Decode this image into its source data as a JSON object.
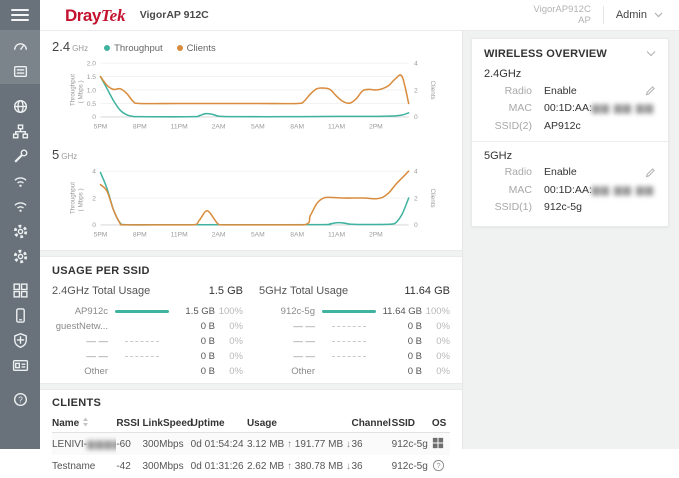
{
  "colors": {
    "teal": "#3fb3a0",
    "orange": "#d98c3e",
    "brand_red": "#c4122f",
    "sidebar_bg": "#69727a",
    "sidebar_active": "#7b838b",
    "page_bg": "#f0f1f1"
  },
  "header": {
    "brand_bold": "Dray",
    "brand_italic": "Tek",
    "model": "VigorAP 912C",
    "device_name": "VigorAP912C",
    "device_mode": "AP",
    "account_label": "Admin"
  },
  "sidebar": {
    "items": [
      {
        "id": "dashboard",
        "icon": "gauge",
        "group": 1
      },
      {
        "id": "status",
        "icon": "monitor",
        "group": 1
      },
      {
        "id": "wizard",
        "icon": "globe",
        "group": 2
      },
      {
        "id": "lan",
        "icon": "lan",
        "group": 2
      },
      {
        "id": "utilities",
        "icon": "wrench",
        "group": 2
      },
      {
        "id": "wireless-2g",
        "icon": "wifi",
        "group": 2
      },
      {
        "id": "wireless-5g",
        "icon": "wifi",
        "group": 2
      },
      {
        "id": "system",
        "icon": "gear",
        "group": 2
      },
      {
        "id": "settings",
        "icon": "gear",
        "group": 2
      },
      {
        "id": "applications",
        "icon": "grid",
        "group": 3
      },
      {
        "id": "mobile",
        "icon": "phone",
        "group": 3
      },
      {
        "id": "security",
        "icon": "shield",
        "group": 3
      },
      {
        "id": "accounts",
        "icon": "idcard",
        "group": 3
      },
      {
        "id": "help",
        "icon": "help",
        "group": 4
      }
    ]
  },
  "chart_data": [
    {
      "type": "line",
      "title_num": "2.4",
      "title_unit": "GHz",
      "legend": true,
      "ylabel_left_1": "Throughput",
      "ylabel_left_2": "( Mbps )",
      "ylabel_right": "Clients",
      "y_left_ticks": [
        "0",
        "0.5",
        "1.0",
        "1.5",
        "2.0"
      ],
      "y_left_max": 2,
      "y_right_ticks": [
        "0",
        "2",
        "4"
      ],
      "y_right_max": 4,
      "x_tick_labels": [
        "5PM",
        "8PM",
        "11PM",
        "2AM",
        "5AM",
        "8AM",
        "11AM",
        "2PM"
      ],
      "x_tick_hours": [
        0,
        3,
        6,
        9,
        12,
        15,
        18,
        21
      ],
      "x_max": 23.5,
      "series": [
        {
          "name": "Throughput",
          "axis": "left",
          "color": "#3fb3a0",
          "points": [
            [
              0,
              1.5
            ],
            [
              0.5,
              1.05
            ],
            [
              1,
              0.6
            ],
            [
              1.5,
              0.25
            ],
            [
              2,
              0.08
            ],
            [
              2.5,
              0.02
            ],
            [
              3,
              0.01
            ],
            [
              7,
              0.01
            ],
            [
              7.5,
              0.04
            ],
            [
              8,
              0.12
            ],
            [
              8.5,
              0.1
            ],
            [
              9,
              0.03
            ],
            [
              10,
              0.01
            ],
            [
              14,
              0.01
            ],
            [
              18,
              0.02
            ],
            [
              20,
              0.02
            ],
            [
              21,
              0.02
            ],
            [
              22,
              0.03
            ],
            [
              22.5,
              0.04
            ],
            [
              23,
              0.07
            ],
            [
              23.5,
              0.15
            ]
          ]
        },
        {
          "name": "Clients",
          "axis": "right",
          "color": "#d98c3e",
          "points": [
            [
              0,
              3
            ],
            [
              0.5,
              2.35
            ],
            [
              1,
              2.05
            ],
            [
              1.5,
              2.1
            ],
            [
              2,
              1.75
            ],
            [
              2.5,
              1.15
            ],
            [
              3,
              1
            ],
            [
              6,
              1
            ],
            [
              9,
              1
            ],
            [
              12,
              1
            ],
            [
              15,
              1
            ],
            [
              15.5,
              1.15
            ],
            [
              16,
              1.7
            ],
            [
              16.5,
              2.1
            ],
            [
              17,
              2.15
            ],
            [
              17.5,
              2.05
            ],
            [
              18,
              1.55
            ],
            [
              18.5,
              1.15
            ],
            [
              19,
              1.02
            ],
            [
              19.5,
              1.35
            ],
            [
              20,
              1.95
            ],
            [
              20.5,
              2.05
            ],
            [
              21,
              2.0
            ],
            [
              21.5,
              2.1
            ],
            [
              22,
              2.35
            ],
            [
              22.5,
              2.85
            ],
            [
              23,
              3.0
            ],
            [
              23.5,
              1.0
            ]
          ]
        }
      ]
    },
    {
      "type": "line",
      "title_num": "5",
      "title_unit": "GHz",
      "legend": false,
      "ylabel_left_1": "Throughput",
      "ylabel_left_2": "( Mbps )",
      "ylabel_right": "Clients",
      "y_left_ticks": [
        "0",
        "2",
        "4"
      ],
      "y_left_max": 4,
      "y_right_ticks": [
        "0",
        "2",
        "4"
      ],
      "y_right_max": 4,
      "x_tick_labels": [
        "5PM",
        "8PM",
        "11PM",
        "2AM",
        "5AM",
        "8AM",
        "11AM",
        "2PM"
      ],
      "x_tick_hours": [
        0,
        3,
        6,
        9,
        12,
        15,
        18,
        21
      ],
      "x_max": 23.5,
      "series": [
        {
          "name": "Throughput",
          "axis": "left",
          "color": "#3fb3a0",
          "points": [
            [
              0,
              3.9
            ],
            [
              0.5,
              2.7
            ],
            [
              1,
              1.1
            ],
            [
              1.5,
              0.15
            ],
            [
              2,
              0.01
            ],
            [
              5,
              0.01
            ],
            [
              8,
              0.01
            ],
            [
              12,
              0.01
            ],
            [
              17,
              0.02
            ],
            [
              17.5,
              0.08
            ],
            [
              18,
              0.16
            ],
            [
              18.5,
              0.15
            ],
            [
              19,
              0.06
            ],
            [
              20,
              0.03
            ],
            [
              21,
              0.03
            ],
            [
              22,
              0.05
            ],
            [
              22.5,
              0.15
            ],
            [
              23,
              0.8
            ],
            [
              23.5,
              2.0
            ]
          ]
        },
        {
          "name": "Clients",
          "axis": "right",
          "color": "#d98c3e",
          "points": [
            [
              0,
              3
            ],
            [
              0.5,
              2.5
            ],
            [
              1,
              1.1
            ],
            [
              1.5,
              0.1
            ],
            [
              1.75,
              0
            ],
            [
              4,
              0
            ],
            [
              7,
              0
            ],
            [
              7.5,
              0.3
            ],
            [
              8,
              1.0
            ],
            [
              8.3,
              0.95
            ],
            [
              8.7,
              0.4
            ],
            [
              9,
              0.05
            ],
            [
              9.5,
              0
            ],
            [
              12,
              0
            ],
            [
              15.5,
              0
            ],
            [
              16,
              0.7
            ],
            [
              16.5,
              1.6
            ],
            [
              17,
              2.0
            ],
            [
              17.5,
              2.05
            ],
            [
              18.5,
              2.0
            ],
            [
              20,
              2.0
            ],
            [
              21,
              1.95
            ],
            [
              21.5,
              2.05
            ],
            [
              22,
              2.4
            ],
            [
              22.5,
              3.0
            ],
            [
              23,
              3.5
            ],
            [
              23.5,
              4.0
            ]
          ]
        }
      ]
    }
  ],
  "usage_per_ssid": {
    "section_title": "USAGE PER SSID",
    "bands": [
      {
        "total_label": "2.4GHz Total Usage",
        "total_value": "1.5 GB",
        "rows": [
          {
            "label": "AP912c",
            "bar": "solid",
            "value": "1.5 GB",
            "pct": "100%"
          },
          {
            "label": "guestNetw...",
            "bar": "none",
            "value": "0 B",
            "pct": "0%"
          },
          {
            "label": "— —",
            "bar": "dash",
            "value": "0 B",
            "pct": "0%"
          },
          {
            "label": "— —",
            "bar": "dash",
            "value": "0 B",
            "pct": "0%"
          },
          {
            "label": "Other",
            "bar": "none",
            "value": "0 B",
            "pct": "0%"
          }
        ]
      },
      {
        "total_label": "5GHz Total Usage",
        "total_value": "11.64 GB",
        "rows": [
          {
            "label": "912c-5g",
            "bar": "solid",
            "value": "11.64 GB",
            "pct": "100%"
          },
          {
            "label": "— —",
            "bar": "dash",
            "value": "0 B",
            "pct": "0%"
          },
          {
            "label": "— —",
            "bar": "dash",
            "value": "0 B",
            "pct": "0%"
          },
          {
            "label": "— —",
            "bar": "dash",
            "value": "0 B",
            "pct": "0%"
          },
          {
            "label": "Other",
            "bar": "none",
            "value": "0 B",
            "pct": "0%"
          }
        ]
      }
    ]
  },
  "clients": {
    "section_title": "CLIENTS",
    "columns": [
      "Name",
      "RSSI",
      "LinkSpeed",
      "Uptime",
      "Usage",
      "Channel",
      "SSID",
      "OS"
    ],
    "rows": [
      {
        "name_prefix": "LENIVI-",
        "name_redacted": "▆▆▆▆",
        "name_suffix": "E",
        "rssi": "-60",
        "linkspeed": "300Mbps",
        "uptime": "0d 01:54:24",
        "usage_up": "3.12 MB",
        "usage_down": "191.77 MB",
        "channel": "36",
        "ssid": "912c-5g",
        "os": "windows"
      },
      {
        "name_prefix": "Testname",
        "name_redacted": "",
        "name_suffix": "",
        "rssi": "-42",
        "linkspeed": "300Mbps",
        "uptime": "0d 01:31:26",
        "usage_up": "2.62 MB",
        "usage_down": "380.78 MB",
        "channel": "36",
        "ssid": "912c-5g",
        "os": "unknown"
      }
    ]
  },
  "wireless_overview": {
    "title": "WIRELESS OVERVIEW",
    "mac_redacted": "▆▆ ▆▆ ▆▆",
    "bands": [
      {
        "band": "2.4GHz",
        "radio_label": "Radio",
        "radio_value": "Enable",
        "mac_label": "MAC",
        "mac_value": "00:1D:AA:",
        "ssid_label": "SSID(2)",
        "ssid_value": "AP912c"
      },
      {
        "band": "5GHz",
        "radio_label": "Radio",
        "radio_value": "Enable",
        "mac_label": "MAC",
        "mac_value": "00:1D:AA:",
        "ssid_label": "SSID(1)",
        "ssid_value": "912c-5g"
      }
    ]
  }
}
